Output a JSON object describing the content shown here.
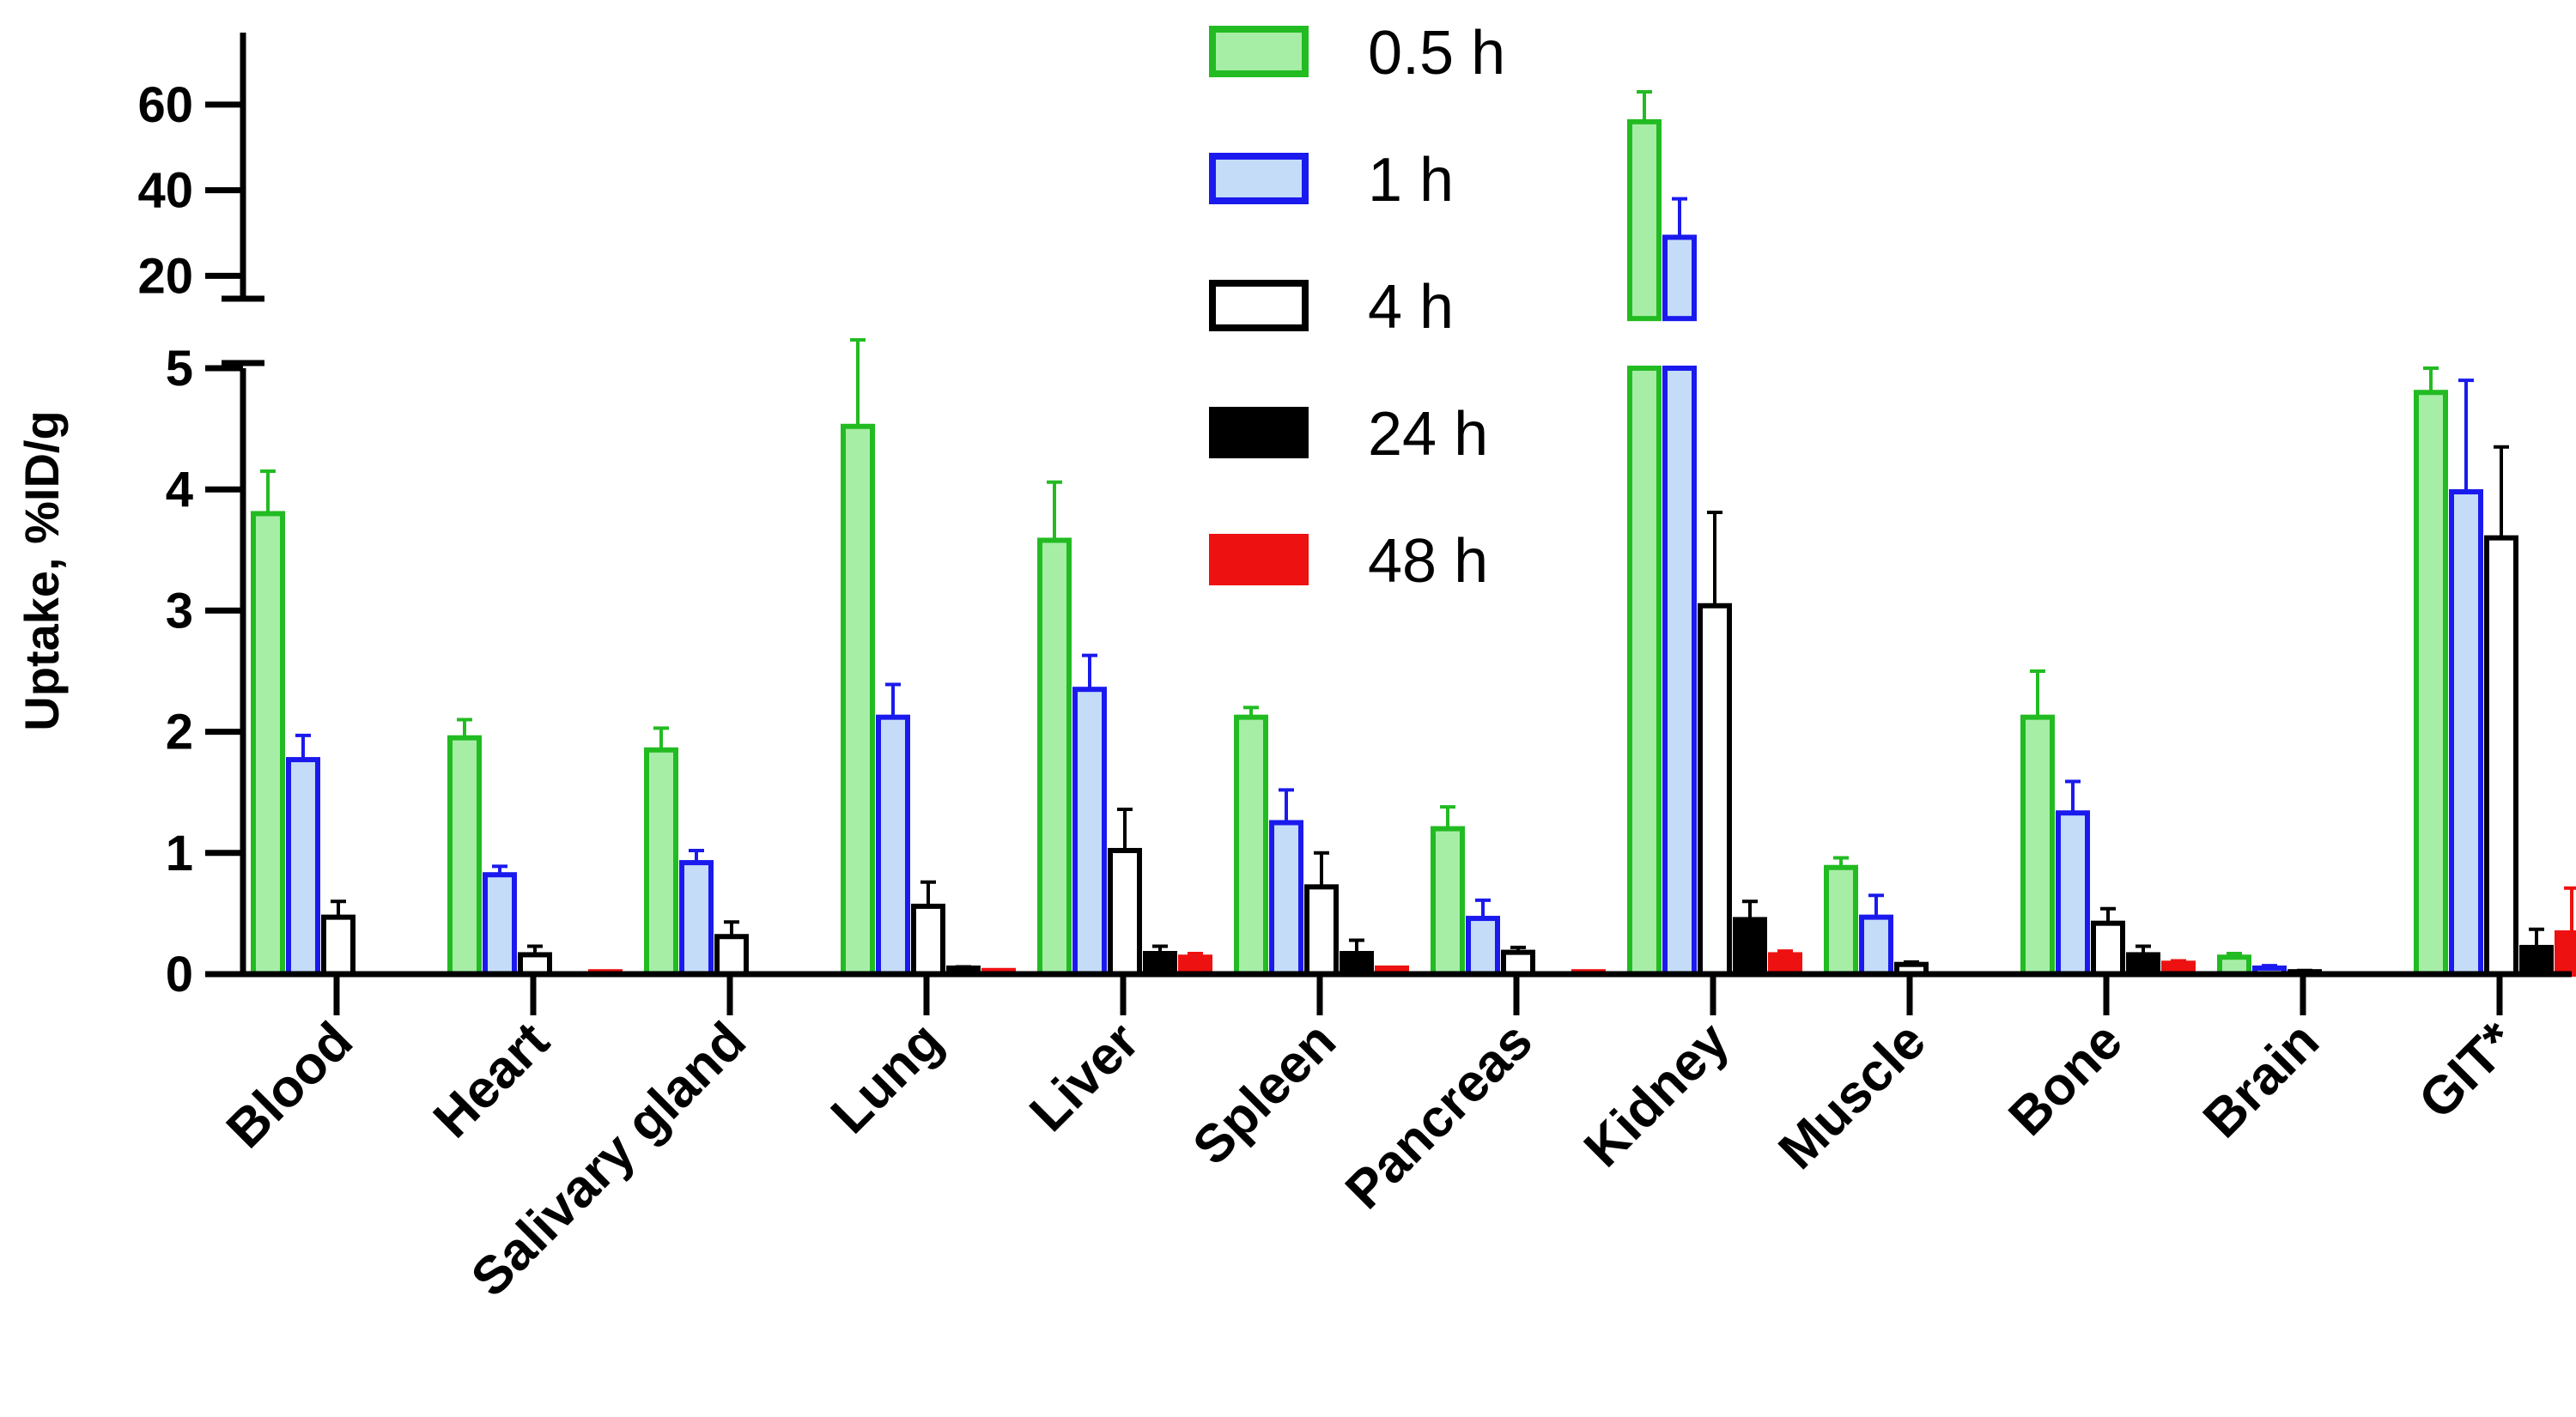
{
  "chart_data": {
    "type": "bar",
    "title": "",
    "xlabel": "",
    "ylabel": "Uptake, %ID/g",
    "y_axis": {
      "broken": true,
      "lower_range": [
        0,
        5
      ],
      "lower_ticks": [
        "0",
        "1",
        "2",
        "3",
        "4",
        "5"
      ],
      "upper_range": [
        10,
        65
      ],
      "upper_ticks": [
        "20",
        "40",
        "60"
      ]
    },
    "grid": false,
    "legend_position": "top-center",
    "categories": [
      "Blood",
      "Heart",
      "Salivary gland",
      "Lung",
      "Liver",
      "Spleen",
      "Pancreas",
      "Kidney",
      "Muscle",
      "Bone",
      "Brain",
      "GIT*"
    ],
    "series": [
      {
        "name": "0.5 h",
        "stroke": "#22bb22",
        "fill": "#a6eea6",
        "values": [
          3.8,
          1.95,
          1.85,
          4.52,
          3.58,
          2.12,
          1.2,
          56,
          0.88,
          2.12,
          0.14,
          4.8
        ],
        "errors": [
          0.35,
          0.15,
          0.18,
          0.5,
          0.48,
          0.08,
          0.18,
          7,
          0.08,
          0.38,
          0.03,
          0.2
        ]
      },
      {
        "name": "1 h",
        "stroke": "#1a1aee",
        "fill": "#c4dcf8",
        "values": [
          1.77,
          0.82,
          0.92,
          2.12,
          2.35,
          1.25,
          0.46,
          29,
          0.47,
          1.33,
          0.05,
          3.98
        ],
        "errors": [
          0.2,
          0.07,
          0.1,
          0.27,
          0.28,
          0.27,
          0.15,
          9,
          0.18,
          0.26,
          0.02,
          0.92
        ]
      },
      {
        "name": "4 h",
        "stroke": "#000000",
        "fill": "#ffffff",
        "values": [
          0.47,
          0.16,
          0.31,
          0.56,
          1.02,
          0.72,
          0.18,
          3.04,
          0.08,
          0.42,
          0.02,
          3.6
        ],
        "errors": [
          0.13,
          0.07,
          0.12,
          0.2,
          0.34,
          0.28,
          0.04,
          0.77,
          0.02,
          0.12,
          0.01,
          0.75
        ]
      },
      {
        "name": "24 h",
        "stroke": "#000000",
        "fill": "#000000",
        "values": [
          null,
          null,
          null,
          0.05,
          0.17,
          0.17,
          null,
          0.45,
          null,
          0.16,
          null,
          0.22
        ],
        "errors": [
          null,
          null,
          null,
          0.01,
          0.06,
          0.11,
          null,
          0.15,
          null,
          0.07,
          null,
          0.15
        ]
      },
      {
        "name": "48 h",
        "stroke": "#ee1111",
        "fill": "#ee1111",
        "values": [
          null,
          0.02,
          null,
          0.03,
          0.14,
          0.05,
          0.02,
          0.16,
          null,
          0.09,
          null,
          0.34
        ],
        "errors": [
          null,
          0,
          null,
          0,
          0.03,
          0,
          0,
          0.03,
          null,
          0.02,
          null,
          0.37
        ]
      }
    ]
  }
}
